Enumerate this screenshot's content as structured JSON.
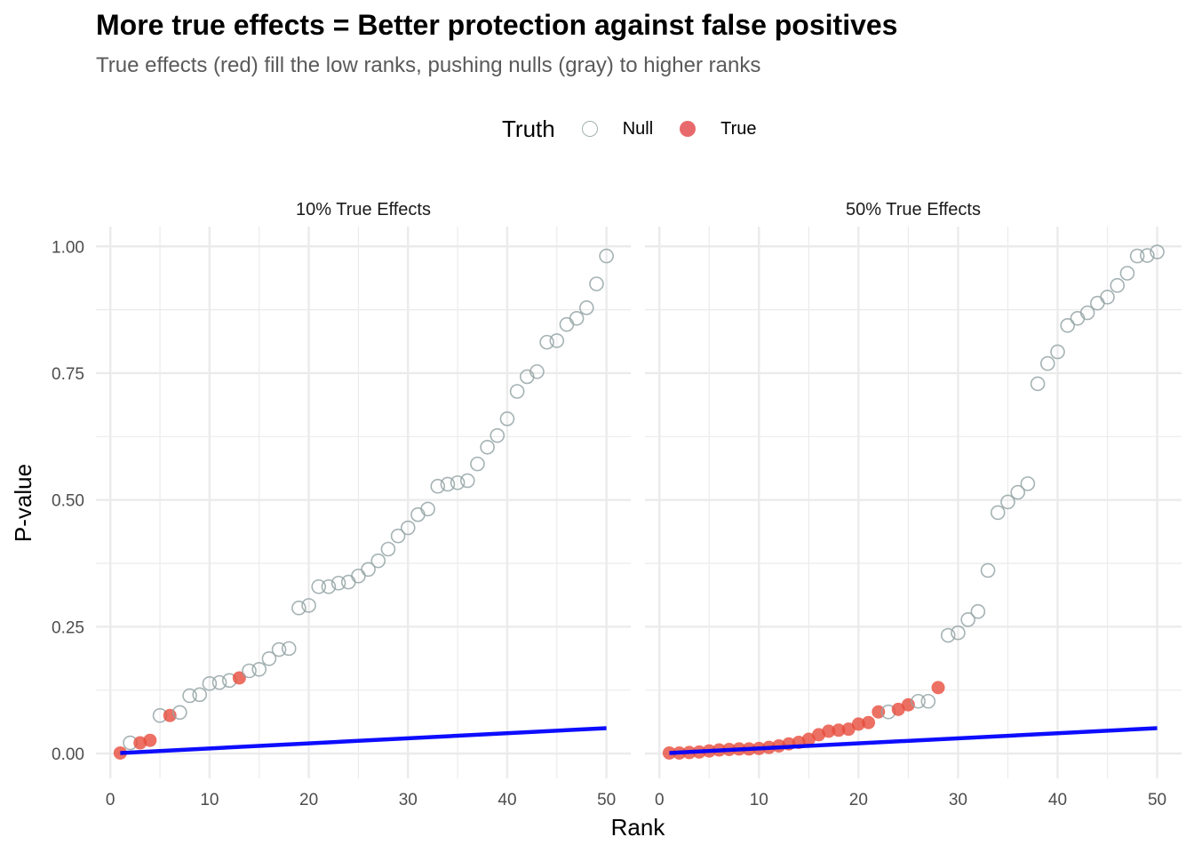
{
  "title": "More true effects = Better protection against false positives",
  "subtitle": "True effects (red) fill the low ranks, pushing nulls (gray) to higher ranks",
  "legend": {
    "title": "Truth",
    "items": [
      {
        "label": "Null",
        "style": "hollow",
        "color": "#95a5a6"
      },
      {
        "label": "True",
        "style": "filled",
        "color": "#e74c3c"
      }
    ]
  },
  "colors": {
    "null": "#95a5a6",
    "true": "#e74c3c",
    "threshold": "#0000ff",
    "grid": "#ebebeb"
  },
  "chart_data": {
    "type": "scatter",
    "xlabel": "Rank",
    "ylabel": "P-value",
    "xlim": [
      -1.45,
      52.45
    ],
    "ylim": [
      -0.049,
      1.039
    ],
    "x_ticks": [
      0,
      10,
      20,
      30,
      40,
      50
    ],
    "y_ticks": [
      0.0,
      0.25,
      0.5,
      0.75,
      1.0
    ],
    "y_tick_labels": [
      "0.00",
      "0.25",
      "0.50",
      "0.75",
      "1.00"
    ],
    "grid": true,
    "legend_position": "top",
    "threshold_line": {
      "description": "BH threshold rank/50 * 0.05",
      "x": [
        1,
        50
      ],
      "y": [
        0.001,
        0.05
      ]
    },
    "panels": [
      {
        "label": "10% True Effects",
        "rank": [
          1,
          2,
          3,
          4,
          5,
          6,
          7,
          8,
          9,
          10,
          11,
          12,
          13,
          14,
          15,
          16,
          17,
          18,
          19,
          20,
          21,
          22,
          23,
          24,
          25,
          26,
          27,
          28,
          29,
          30,
          31,
          32,
          33,
          34,
          35,
          36,
          37,
          38,
          39,
          40,
          41,
          42,
          43,
          44,
          45,
          46,
          47,
          48,
          49,
          50
        ],
        "pvalue": [
          0.001,
          0.021,
          0.021,
          0.026,
          0.075,
          0.075,
          0.081,
          0.114,
          0.116,
          0.138,
          0.14,
          0.144,
          0.149,
          0.163,
          0.166,
          0.187,
          0.205,
          0.207,
          0.287,
          0.292,
          0.329,
          0.329,
          0.336,
          0.338,
          0.35,
          0.363,
          0.38,
          0.403,
          0.429,
          0.445,
          0.471,
          0.482,
          0.527,
          0.531,
          0.534,
          0.538,
          0.571,
          0.604,
          0.627,
          0.66,
          0.714,
          0.743,
          0.753,
          0.811,
          0.814,
          0.846,
          0.858,
          0.879,
          0.926,
          0.981
        ],
        "truth": [
          "True",
          "Null",
          "True",
          "True",
          "Null",
          "True",
          "Null",
          "Null",
          "Null",
          "Null",
          "Null",
          "Null",
          "True",
          "Null",
          "Null",
          "Null",
          "Null",
          "Null",
          "Null",
          "Null",
          "Null",
          "Null",
          "Null",
          "Null",
          "Null",
          "Null",
          "Null",
          "Null",
          "Null",
          "Null",
          "Null",
          "Null",
          "Null",
          "Null",
          "Null",
          "Null",
          "Null",
          "Null",
          "Null",
          "Null",
          "Null",
          "Null",
          "Null",
          "Null",
          "Null",
          "Null",
          "Null",
          "Null",
          "Null",
          "Null"
        ]
      },
      {
        "label": "50% True Effects",
        "rank": [
          1,
          2,
          3,
          4,
          5,
          6,
          7,
          8,
          9,
          10,
          11,
          12,
          13,
          14,
          15,
          16,
          17,
          18,
          19,
          20,
          21,
          22,
          23,
          24,
          25,
          26,
          27,
          28,
          29,
          30,
          31,
          32,
          33,
          34,
          35,
          36,
          37,
          38,
          39,
          40,
          41,
          42,
          43,
          44,
          45,
          46,
          47,
          48,
          49,
          50
        ],
        "pvalue": [
          0.001,
          0.001,
          0.002,
          0.003,
          0.005,
          0.007,
          0.008,
          0.009,
          0.009,
          0.01,
          0.012,
          0.015,
          0.019,
          0.022,
          0.028,
          0.037,
          0.044,
          0.046,
          0.048,
          0.058,
          0.061,
          0.082,
          0.082,
          0.087,
          0.096,
          0.103,
          0.103,
          0.13,
          0.233,
          0.238,
          0.264,
          0.28,
          0.361,
          0.475,
          0.496,
          0.515,
          0.532,
          0.729,
          0.769,
          0.792,
          0.844,
          0.858,
          0.869,
          0.888,
          0.9,
          0.923,
          0.947,
          0.981,
          0.982,
          0.989
        ],
        "truth": [
          "True",
          "True",
          "True",
          "True",
          "True",
          "True",
          "True",
          "True",
          "True",
          "True",
          "True",
          "True",
          "True",
          "True",
          "True",
          "True",
          "True",
          "True",
          "True",
          "True",
          "True",
          "True",
          "Null",
          "True",
          "True",
          "Null",
          "Null",
          "True",
          "Null",
          "Null",
          "Null",
          "Null",
          "Null",
          "Null",
          "Null",
          "Null",
          "Null",
          "Null",
          "Null",
          "Null",
          "Null",
          "Null",
          "Null",
          "Null",
          "Null",
          "Null",
          "Null",
          "Null",
          "Null",
          "Null"
        ]
      }
    ]
  }
}
